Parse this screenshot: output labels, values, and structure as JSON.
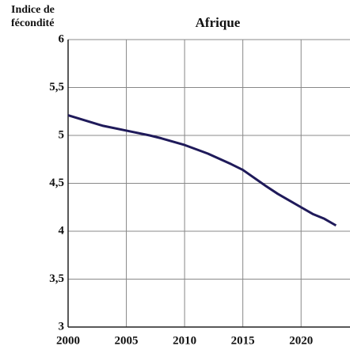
{
  "chart_data": {
    "type": "line",
    "title": "Afrique",
    "ylabel": [
      "Indice de",
      "fécondité"
    ],
    "x": [
      2000,
      2003,
      2005,
      2007,
      2008,
      2010,
      2012,
      2014,
      2015,
      2017,
      2018,
      2020,
      2021,
      2022,
      2023
    ],
    "series": [
      {
        "name": "Afrique",
        "color": "#1f1a5a",
        "values": [
          5.21,
          5.1,
          5.05,
          5.0,
          4.97,
          4.9,
          4.81,
          4.7,
          4.64,
          4.47,
          4.39,
          4.25,
          4.18,
          4.13,
          4.06
        ]
      }
    ],
    "xlim": [
      2000,
      2024.2
    ],
    "xticks": [
      2000,
      2005,
      2010,
      2015,
      2020
    ],
    "ylim": [
      3,
      6
    ],
    "yticks": [
      3,
      {
        "value": 3.5,
        "label": "3,5"
      },
      4,
      {
        "value": 4.5,
        "label": "4,5"
      },
      5,
      {
        "value": 5.5,
        "label": "5,5"
      },
      6
    ],
    "grid": true
  }
}
